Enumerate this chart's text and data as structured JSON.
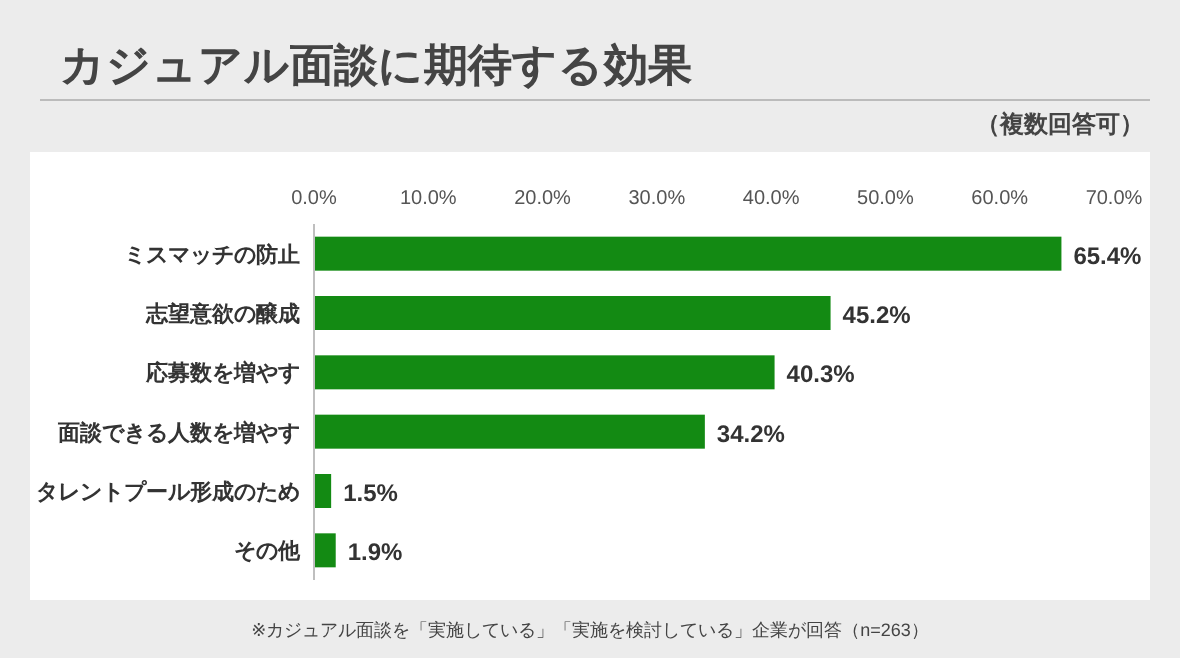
{
  "chart_data": {
    "type": "bar",
    "orientation": "horizontal",
    "title": "カジュアル面談に期待する効果",
    "subtitle": "（複数回答可）",
    "categories": [
      "ミスマッチの防止",
      "志望意欲の醸成",
      "応募数を増やす",
      "面談できる人数を増やす",
      "タレントプール形成のため",
      "その他"
    ],
    "values": [
      65.4,
      45.2,
      40.3,
      34.2,
      1.5,
      1.9
    ],
    "value_labels": [
      "65.4%",
      "45.2%",
      "40.3%",
      "34.2%",
      "1.5%",
      "1.9%"
    ],
    "color": "#138a13",
    "xlim": [
      0,
      70
    ],
    "xticks": [
      {
        "value": 0,
        "label": "0.0%"
      },
      {
        "value": 10,
        "label": "10.0%"
      },
      {
        "value": 20,
        "label": "20.0%"
      },
      {
        "value": 30,
        "label": "30.0%"
      },
      {
        "value": 40,
        "label": "40.0%"
      },
      {
        "value": 50,
        "label": "50.0%"
      },
      {
        "value": 60,
        "label": "60.0%"
      },
      {
        "value": 70,
        "label": "70.0%"
      }
    ],
    "grid": false,
    "annotations": [
      "※カジュアル面談を「実施している」「実施を検討している」企業が回答（n=263）"
    ]
  }
}
